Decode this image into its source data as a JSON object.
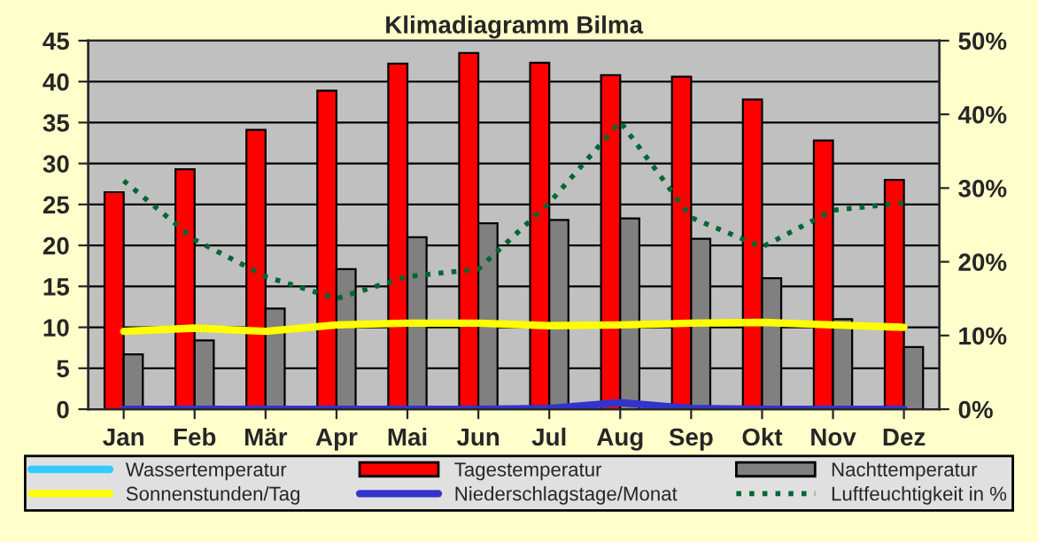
{
  "chart_data": {
    "type": "bar",
    "title": "Klimadiagramm Bilma",
    "categories": [
      "Jan",
      "Feb",
      "Mär",
      "Apr",
      "Mai",
      "Jun",
      "Jul",
      "Aug",
      "Sep",
      "Okt",
      "Nov",
      "Dez"
    ],
    "series": [
      {
        "name": "Wassertemperatur",
        "type": "line",
        "color": "#33ccff",
        "values": [
          null,
          null,
          null,
          null,
          null,
          null,
          null,
          null,
          null,
          null,
          null,
          null
        ]
      },
      {
        "name": "Tagestemperatur",
        "color": "#ff0000",
        "values": [
          26.5,
          29.3,
          34.1,
          38.9,
          42.2,
          43.5,
          42.3,
          40.8,
          40.6,
          37.8,
          32.8,
          28.0
        ]
      },
      {
        "name": "Nachttemperatur",
        "color": "#808080",
        "values": [
          6.7,
          8.4,
          12.3,
          17.1,
          21.0,
          22.7,
          23.1,
          23.3,
          20.8,
          16.0,
          11.0,
          7.6
        ]
      },
      {
        "name": "Sonnenstunden/Tag",
        "type": "line",
        "color": "#ffff00",
        "line_style": "solid",
        "values": [
          9.5,
          9.9,
          9.5,
          10.3,
          10.5,
          10.5,
          10.2,
          10.3,
          10.5,
          10.6,
          10.3,
          10.0
        ]
      },
      {
        "name": "Niederschlagstage/Monat",
        "type": "line",
        "color": "#3333cc",
        "line_style": "solid",
        "values": [
          0,
          0,
          0,
          0,
          0,
          0,
          0.1,
          0.8,
          0.1,
          0,
          0,
          0
        ]
      },
      {
        "name": "Luftfeuchtigkeit in %",
        "type": "line",
        "color": "#006633",
        "line_style": "dotted",
        "axis": "y2",
        "values": [
          31,
          23,
          18,
          15,
          18,
          19,
          28,
          39,
          26,
          22,
          27,
          28
        ]
      }
    ],
    "ylim": [
      0,
      45
    ],
    "yticks": [
      0,
      5,
      10,
      15,
      20,
      25,
      30,
      35,
      40,
      45
    ],
    "y2lim": [
      0,
      50
    ],
    "y2ticks": [
      {
        "value": 0,
        "label": "0%"
      },
      {
        "value": 10,
        "label": "10%"
      },
      {
        "value": 20,
        "label": "20%"
      },
      {
        "value": 30,
        "label": "30%"
      },
      {
        "value": 40,
        "label": "40%"
      },
      {
        "value": 50,
        "label": "50%"
      }
    ],
    "grid": "y",
    "legend": "bottom",
    "marker": "none"
  }
}
